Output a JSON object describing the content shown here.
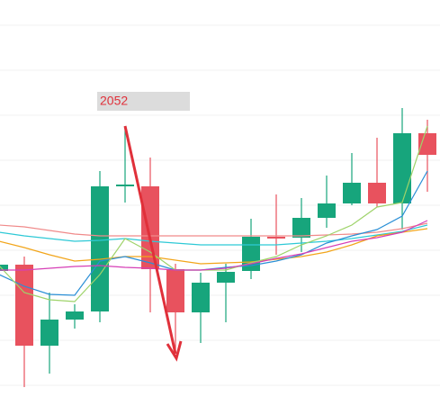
{
  "chart_data": {
    "type": "candlestick",
    "price_label": 2052,
    "categories": [
      null,
      null,
      null,
      null,
      null,
      null,
      null,
      null,
      null,
      null,
      null,
      null,
      null,
      null,
      null,
      null,
      null,
      null
    ],
    "open": [
      1863,
      1870,
      1780,
      1809,
      1818,
      1957,
      1957,
      1865,
      1817,
      1850,
      1863,
      1901,
      1900,
      1922,
      1938,
      1961,
      1938,
      2016
    ],
    "close": [
      1870,
      1780,
      1809,
      1818,
      1957,
      1959,
      1865,
      1817,
      1850,
      1862,
      1901,
      1899,
      1922,
      1938,
      1961,
      1938,
      2016,
      1992
    ],
    "high": [
      1873,
      1879,
      1839,
      1826,
      1974,
      2024,
      1989,
      1871,
      1861,
      1871,
      1921,
      1948,
      1944,
      1969,
      1994,
      2011,
      2044,
      2031
    ],
    "low": [
      1860,
      1734,
      1749,
      1799,
      1806,
      1939,
      1817,
      1772,
      1783,
      1806,
      1854,
      1881,
      1884,
      1911,
      1936,
      1934,
      1909,
      1951
    ],
    "up_color": "#17a57c",
    "down_color": "#e8525e",
    "series": [
      {
        "color": "#f08a8a",
        "values": [
          1914,
          1912,
          1908,
          1904,
          1902,
          1902,
          1902,
          1902,
          1902,
          1902,
          1902,
          1902,
          1902,
          1903,
          1904,
          1906,
          1910,
          1916
        ]
      },
      {
        "color": "#2ec9d6",
        "values": [
          1906,
          1902,
          1899,
          1896,
          1897,
          1899,
          1896,
          1894,
          1892,
          1892,
          1892,
          1892,
          1894,
          1896,
          1899,
          1903,
          1907,
          1914
        ]
      },
      {
        "color": "#f2a51a",
        "values": [
          1896,
          1889,
          1881,
          1874,
          1876,
          1879,
          1879,
          1875,
          1871,
          1872,
          1873,
          1876,
          1879,
          1884,
          1892,
          1902,
          1906,
          1910
        ]
      },
      {
        "color": "#2a8fd6",
        "values": [
          1859,
          1846,
          1837,
          1836,
          1874,
          1879,
          1872,
          1864,
          1864,
          1867,
          1869,
          1874,
          1881,
          1894,
          1902,
          1909,
          1924,
          1974
        ]
      },
      {
        "color": "#9ed36a",
        "values": [
          1869,
          1839,
          1831,
          1829,
          1859,
          1899,
          1884,
          1864,
          1864,
          1864,
          1872,
          1879,
          1892,
          1902,
          1914,
          1934,
          1939,
          2024
        ]
      },
      {
        "color": "#d63fb6",
        "values": [
          1864,
          1864,
          1866,
          1868,
          1869,
          1867,
          1866,
          1864,
          1864,
          1866,
          1871,
          1877,
          1882,
          1889,
          1896,
          1900,
          1906,
          1919
        ]
      }
    ],
    "ylim": [
      1703,
      2164
    ],
    "yticks": [
      1736,
      1786,
      1836,
      1886,
      1936,
      1986,
      2036,
      2086,
      2136
    ],
    "grid": true
  }
}
